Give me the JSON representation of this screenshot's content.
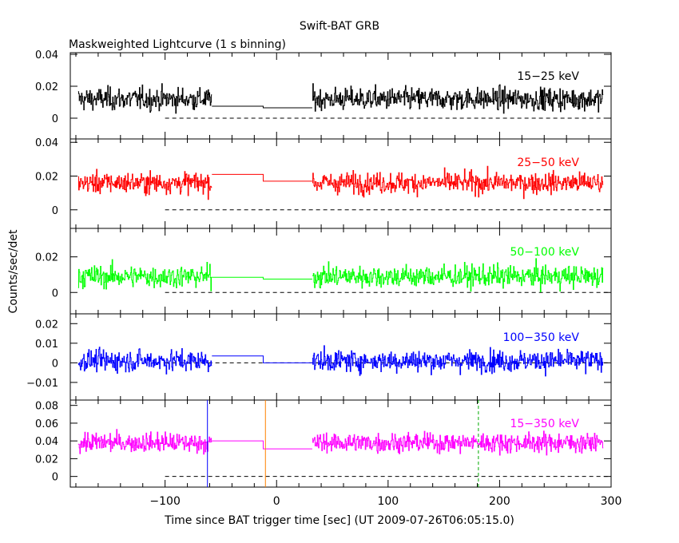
{
  "title": "Swift-BAT GRB",
  "subtitle": "Maskweighted Lightcurve (1 s binning)",
  "xlabel": "Time since BAT trigger time [sec] (UT 2009-07-26T06:05:15.0)",
  "ylabel": "Counts/sec/det",
  "chart_data": {
    "type": "line",
    "xlim": [
      -185,
      300
    ],
    "x_ticks": [
      -100,
      0,
      100,
      200,
      300
    ],
    "x_tick_labels": [
      "−100",
      "0",
      "100",
      "200",
      "300"
    ],
    "data_segments": [
      [
        -178,
        -58
      ],
      [
        32,
        293
      ]
    ],
    "gap_levels_breakpoint": -12,
    "panels": [
      {
        "label": "15−25 keV",
        "color": "#000000",
        "ylim": [
          -0.013,
          0.041
        ],
        "y_ticks": [
          0,
          0.02,
          0.04
        ],
        "y_tick_labels": [
          "0",
          "0.02",
          "0.04"
        ],
        "mean": 0.012,
        "noise": 0.009,
        "gap_levels": [
          0.0075,
          0.0065
        ]
      },
      {
        "label": "25−50 keV",
        "color": "#ff0000",
        "ylim": [
          -0.011,
          0.042
        ],
        "y_ticks": [
          0,
          0.02,
          0.04
        ],
        "y_tick_labels": [
          "0",
          "0.02",
          "0.04"
        ],
        "mean": 0.016,
        "noise": 0.008,
        "gap_levels": [
          0.021,
          0.017
        ]
      },
      {
        "label": "50−100 keV",
        "color": "#00ff00",
        "ylim": [
          -0.012,
          0.036
        ],
        "y_ticks": [
          0,
          0.02
        ],
        "y_tick_labels": [
          "0",
          "0.02"
        ],
        "mean": 0.009,
        "noise": 0.008,
        "gap_levels": [
          0.0085,
          0.0075
        ]
      },
      {
        "label": "100−350 keV",
        "color": "#0000ff",
        "ylim": [
          -0.019,
          0.025
        ],
        "y_ticks": [
          -0.01,
          0,
          0.01,
          0.02
        ],
        "y_tick_labels": [
          "−0.01",
          "0",
          "0.01",
          "0.02"
        ],
        "mean": 0.001,
        "noise": 0.007,
        "gap_levels": [
          0.0035,
          0.0
        ]
      },
      {
        "label": "15−350 keV",
        "color": "#ff00ff",
        "ylim": [
          -0.012,
          0.086
        ],
        "y_ticks": [
          0,
          0.02,
          0.04,
          0.06,
          0.08
        ],
        "y_tick_labels": [
          "0",
          "0.02",
          "0.04",
          "0.06",
          "0.08"
        ],
        "mean": 0.038,
        "noise": 0.014,
        "gap_levels": [
          0.04,
          0.031
        ]
      }
    ],
    "markers": [
      {
        "x": -62,
        "color": "#0000ff",
        "style": "solid"
      },
      {
        "x": -10,
        "color": "#ff8000",
        "style": "solid"
      },
      {
        "x": 181,
        "color": "#00aa00",
        "style": "dashed"
      }
    ]
  }
}
